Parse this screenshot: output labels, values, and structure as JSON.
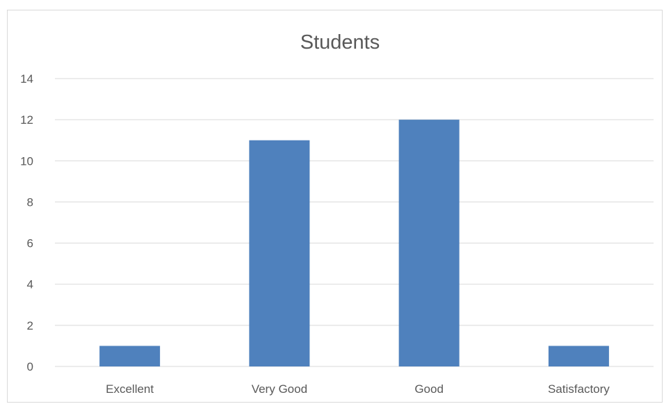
{
  "chart_data": {
    "type": "bar",
    "title": "Students",
    "categories": [
      "Excellent",
      "Very Good",
      "Good",
      "Satisfactory"
    ],
    "values": [
      1,
      11,
      12,
      1
    ],
    "xlabel": "",
    "ylabel": "",
    "ylim": [
      0,
      14
    ],
    "yticks": [
      "0",
      "2",
      "4",
      "6",
      "8",
      "10",
      "12",
      "14"
    ],
    "grid": true,
    "legend": "none",
    "bar_color": "#4f81bd"
  }
}
